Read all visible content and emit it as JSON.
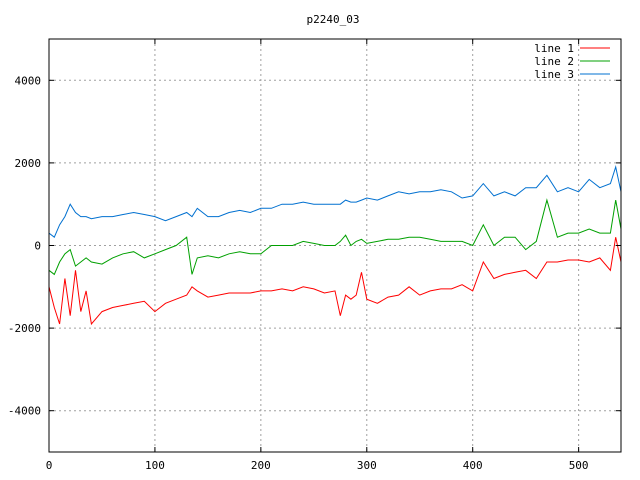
{
  "chart_data": {
    "type": "line",
    "title": "p2240_03",
    "xlabel": "",
    "ylabel": "",
    "xlim": [
      0,
      540
    ],
    "ylim": [
      -5000,
      5000
    ],
    "xticks": [
      0,
      100,
      200,
      300,
      400,
      500
    ],
    "yticks": [
      -4000,
      -2000,
      0,
      2000,
      4000
    ],
    "grid": true,
    "legend_position": "top-right",
    "x": [
      0,
      5,
      10,
      15,
      20,
      25,
      30,
      35,
      40,
      50,
      60,
      70,
      80,
      90,
      100,
      110,
      120,
      130,
      135,
      140,
      150,
      160,
      170,
      180,
      190,
      200,
      210,
      220,
      230,
      240,
      250,
      260,
      270,
      275,
      280,
      285,
      290,
      295,
      300,
      310,
      320,
      330,
      340,
      350,
      360,
      370,
      380,
      390,
      400,
      410,
      420,
      430,
      440,
      450,
      460,
      470,
      480,
      490,
      500,
      510,
      520,
      530,
      535,
      540
    ],
    "series": [
      {
        "name": "line 1",
        "color": "#ff0000",
        "values": [
          -1000,
          -1500,
          -1900,
          -800,
          -1700,
          -600,
          -1600,
          -1100,
          -1900,
          -1600,
          -1500,
          -1450,
          -1400,
          -1350,
          -1600,
          -1400,
          -1300,
          -1200,
          -1000,
          -1100,
          -1250,
          -1200,
          -1150,
          -1150,
          -1150,
          -1100,
          -1100,
          -1050,
          -1100,
          -1000,
          -1050,
          -1150,
          -1100,
          -1700,
          -1200,
          -1300,
          -1200,
          -650,
          -1300,
          -1400,
          -1250,
          -1200,
          -1000,
          -1200,
          -1100,
          -1050,
          -1050,
          -950,
          -1100,
          -400,
          -800,
          -700,
          -650,
          -600,
          -800,
          -400,
          -400,
          -350,
          -350,
          -400,
          -300,
          -600,
          200,
          -400
        ]
      },
      {
        "name": "line 2",
        "color": "#00a000",
        "values": [
          -600,
          -700,
          -400,
          -200,
          -100,
          -500,
          -400,
          -300,
          -400,
          -450,
          -300,
          -200,
          -150,
          -300,
          -200,
          -100,
          0,
          200,
          -700,
          -300,
          -250,
          -300,
          -200,
          -150,
          -200,
          -200,
          0,
          0,
          0,
          100,
          50,
          0,
          0,
          100,
          250,
          0,
          100,
          150,
          50,
          100,
          150,
          150,
          200,
          200,
          150,
          100,
          100,
          100,
          0,
          500,
          0,
          200,
          200,
          -100,
          100,
          1100,
          200,
          300,
          300,
          400,
          300,
          300,
          1100,
          400
        ]
      },
      {
        "name": "line 3",
        "color": "#0070d0",
        "values": [
          300,
          200,
          500,
          700,
          1000,
          800,
          700,
          700,
          650,
          700,
          700,
          750,
          800,
          750,
          700,
          600,
          700,
          800,
          700,
          900,
          700,
          700,
          800,
          850,
          800,
          900,
          900,
          1000,
          1000,
          1050,
          1000,
          1000,
          1000,
          1000,
          1100,
          1050,
          1050,
          1100,
          1150,
          1100,
          1200,
          1300,
          1250,
          1300,
          1300,
          1350,
          1300,
          1150,
          1200,
          1500,
          1200,
          1300,
          1200,
          1400,
          1400,
          1700,
          1300,
          1400,
          1300,
          1600,
          1400,
          1500,
          1900,
          1300
        ]
      }
    ]
  }
}
